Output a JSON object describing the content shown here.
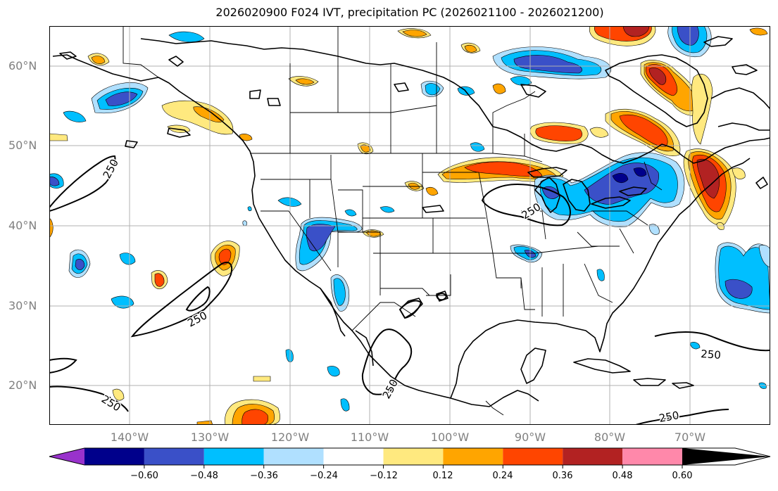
{
  "title": "2026020900 F024 IVT, precipitation PC (2026021100 - 2026021200)",
  "lat_labels": [
    "60°N",
    "50°N",
    "40°N",
    "30°N",
    "20°N"
  ],
  "lon_labels": [
    "140°W",
    "130°W",
    "120°W",
    "110°W",
    "100°W",
    "90°W",
    "80°W",
    "70°W"
  ],
  "contour_labels": [
    "250",
    "250",
    "250",
    "250",
    "250",
    "250",
    "250"
  ],
  "colorbar": {
    "labels": [
      "−0.60",
      "−0.48",
      "−0.36",
      "−0.24",
      "−0.12",
      "0.12",
      "0.24",
      "0.36",
      "0.48",
      "0.60"
    ],
    "colors": [
      "#9932cc",
      "#00008b",
      "#3a50c8",
      "#00bfff",
      "#b0e0ff",
      "#ffffff",
      "#ffe97f",
      "#ffa500",
      "#ff4500",
      "#b22222",
      "#ff88aa"
    ]
  }
}
